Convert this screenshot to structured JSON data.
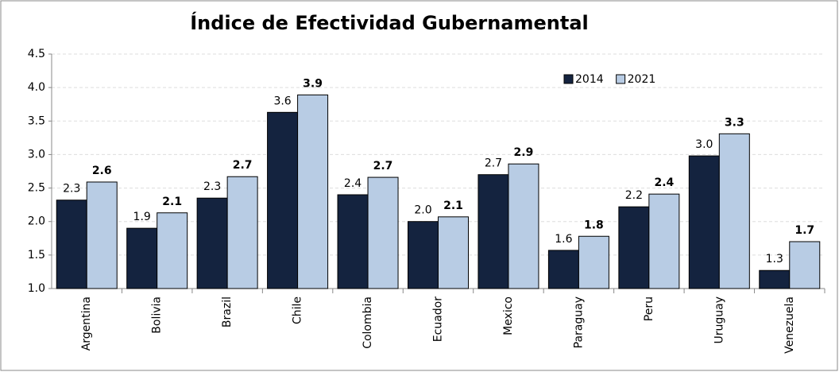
{
  "chart_data": {
    "type": "bar",
    "title": "Índice de Efectividad Gubernamental",
    "categories": [
      "Argentina",
      "Bolivia",
      "Brazil",
      "Chile",
      "Colombia",
      "Ecuador",
      "Mexico",
      "Paraguay",
      "Peru",
      "Uruguay",
      "Venezuela"
    ],
    "series": [
      {
        "name": "2014",
        "color": "#14233f",
        "values": [
          2.32,
          1.9,
          2.35,
          3.63,
          2.4,
          2.0,
          2.7,
          1.57,
          2.22,
          2.98,
          1.27
        ],
        "value_labels": [
          "2.3",
          "1.9",
          "2.3",
          "3.6",
          "2.4",
          "2.0",
          "2.7",
          "1.6",
          "2.2",
          "3.0",
          "1.3"
        ]
      },
      {
        "name": "2021",
        "color": "#b8cce4",
        "values": [
          2.59,
          2.13,
          2.67,
          3.89,
          2.66,
          2.07,
          2.86,
          1.78,
          2.41,
          3.31,
          1.7
        ],
        "value_labels": [
          "2.6",
          "2.1",
          "2.7",
          "3.9",
          "2.7",
          "2.1",
          "2.9",
          "1.8",
          "2.4",
          "3.3",
          "1.7"
        ]
      }
    ],
    "ylim": [
      1,
      4.5
    ],
    "yticks": [
      {
        "value": 1,
        "label": "1.0"
      },
      1.5,
      {
        "value": 2,
        "label": "2.0"
      },
      2.5,
      {
        "value": 3,
        "label": "3.0"
      },
      3.5,
      {
        "value": 4,
        "label": "4.0"
      },
      4.5
    ],
    "grid": true,
    "legend": "top-right"
  }
}
